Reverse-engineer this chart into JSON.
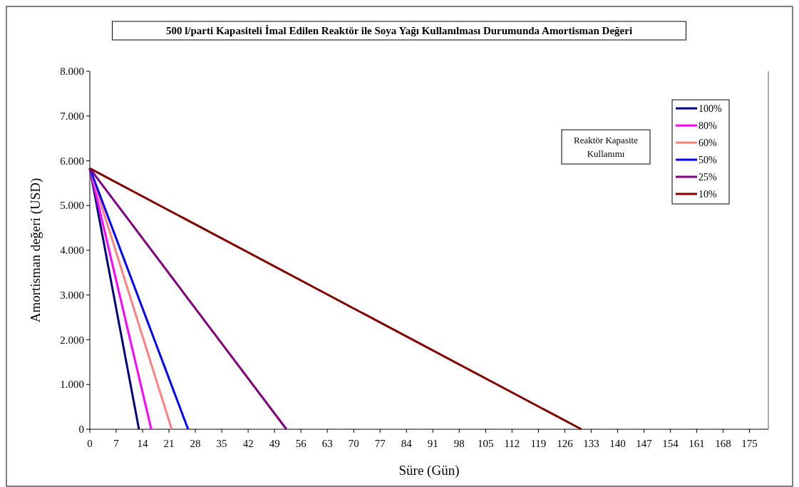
{
  "chart_data": {
    "type": "line",
    "title": "500 l/parti Kapasiteli İmal Edilen Reaktör ile Soya Yağı Kullanılması Durumunda Amortisman Değeri",
    "xlabel": "Süre   (Gün)",
    "ylabel": "Amortisman değeri   (USD)",
    "legend_title": "Reaktör Kapasite Kullanımı",
    "xlim": [
      0,
      180
    ],
    "xticks": [
      0,
      7,
      14,
      21,
      28,
      35,
      42,
      49,
      56,
      63,
      70,
      77,
      84,
      91,
      98,
      105,
      112,
      119,
      126,
      133,
      140,
      147,
      154,
      161,
      168,
      175
    ],
    "ylim": [
      0,
      8000
    ],
    "yticks": [
      {
        "value": 0,
        "label": "0"
      },
      {
        "value": 1000,
        "label": "1.000"
      },
      {
        "value": 2000,
        "label": "2.000"
      },
      {
        "value": 3000,
        "label": "3.000"
      },
      {
        "value": 4000,
        "label": "4.000"
      },
      {
        "value": 5000,
        "label": "5.000"
      },
      {
        "value": 6000,
        "label": "6.000"
      },
      {
        "value": 7000,
        "label": "7.000"
      },
      {
        "value": 8000,
        "label": "8.000"
      }
    ],
    "grid": false,
    "legend": "top right",
    "marker": "none",
    "line_style": "solid",
    "series": [
      {
        "name": "100%",
        "color": "#000080",
        "x": [
          0,
          13.04
        ],
        "values": [
          5830,
          0
        ]
      },
      {
        "name": "80%",
        "color": "#ff00ff",
        "x": [
          0,
          16.3
        ],
        "values": [
          5830,
          0
        ]
      },
      {
        "name": "60%",
        "color": "#ff8080",
        "x": [
          0,
          21.73
        ],
        "values": [
          5830,
          0
        ]
      },
      {
        "name": "50%",
        "color": "#0000ff",
        "x": [
          0,
          26.08
        ],
        "values": [
          5830,
          0
        ]
      },
      {
        "name": "25%",
        "color": "#800080",
        "x": [
          0,
          52.16
        ],
        "values": [
          5830,
          0
        ]
      },
      {
        "name": "10%",
        "color": "#800000",
        "x": [
          0,
          130.4
        ],
        "values": [
          5830,
          0
        ]
      }
    ]
  }
}
